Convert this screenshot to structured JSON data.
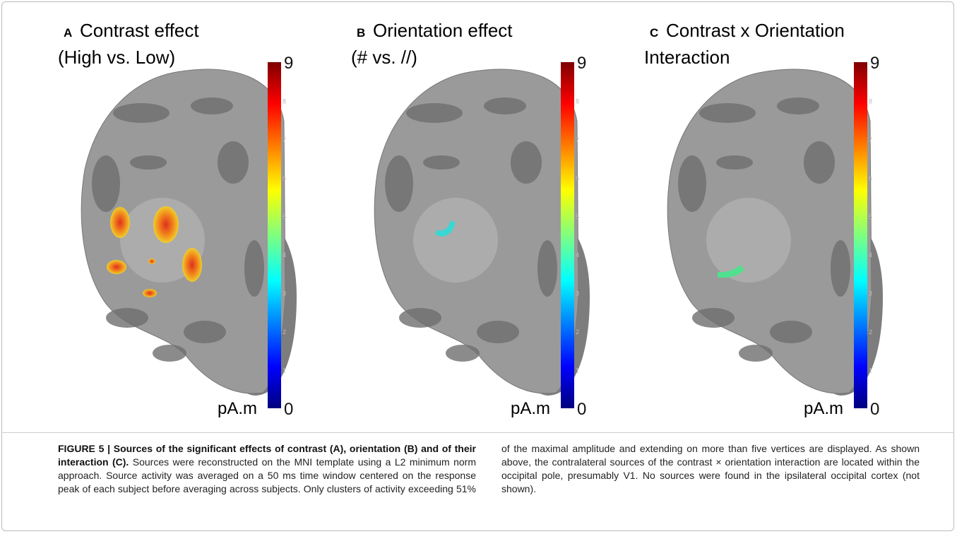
{
  "panels": [
    {
      "letter": "A",
      "title": "Contrast effect",
      "subtitle": "(High vs. Low)",
      "unit": "pA.m",
      "ticks": [
        0,
        1,
        2,
        3,
        4,
        5,
        6,
        7,
        8,
        9
      ]
    },
    {
      "letter": "B",
      "title": "Orientation effect",
      "subtitle": "(# vs. //)",
      "unit": "pA.m",
      "ticks": [
        0,
        1,
        2,
        3,
        4,
        5,
        6,
        7,
        8,
        9
      ]
    },
    {
      "letter": "C",
      "title": "Contrast x Orientation",
      "subtitle": "Interaction",
      "unit": "pA.m",
      "ticks": [
        0,
        1,
        2,
        3,
        4,
        5,
        6,
        7,
        8,
        9
      ]
    }
  ],
  "caption": {
    "label": "FIGURE 5 | Sources of the significant effects of contrast (A), orientation (B) and of their interaction (C).",
    "text": "Sources were reconstructed on the MNI template using a L2 minimum norm approach. Source activity was averaged on a 50 ms time window centered on the response peak of each subject before averaging across subjects. Only clusters of activity exceeding 51% of the maximal amplitude and extending on more than five vertices are displayed. As shown above, the contralateral sources of the contrast × orientation interaction are located within the occipital pole, presumably V1. No sources were found in the ipsilateral occipital cortex (not shown)."
  }
}
